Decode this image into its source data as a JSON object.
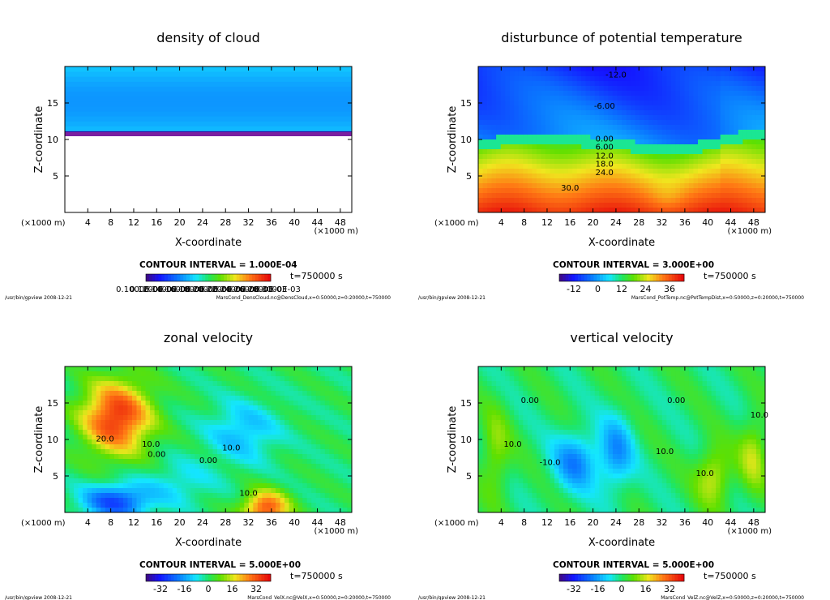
{
  "chart_data": [
    {
      "type": "heatmap",
      "panel": "top-left",
      "title": "density of cloud",
      "xlabel": "X-coordinate",
      "ylabel": "Z-coordinate",
      "x_unit": "(×1000 m)",
      "z_unit": "(×1000 m)",
      "xlim": [
        0,
        50
      ],
      "ylim": [
        0,
        20
      ],
      "x_ticks": [
        4,
        8,
        12,
        16,
        20,
        24,
        28,
        32,
        36,
        40,
        44,
        48
      ],
      "y_ticks": [
        5,
        10,
        15
      ],
      "contour_interval": "CONTOUR INTERVAL = 1.000E-04",
      "time": "t=750000 s",
      "colorbar_labels": [
        "0.1000E-03",
        "0.1200E-03",
        "0.1400E-03",
        "0.1600E-03",
        "0.1800E-03",
        "0.2000E-03",
        "0.2200E-03",
        "0.2400E-03",
        "0.2600E-03",
        "0.2800E-03",
        "0.3000E-03"
      ],
      "cloud_bottom_z": 10.5,
      "cloud_top_z": 20,
      "contour_labels": [],
      "footer_left": "/usr/bin/gpview   2008-12-21",
      "footer_right": "MarsCond_DensCloud.nc@DensCloud,x=0:50000,z=0:20000,t=750000"
    },
    {
      "type": "heatmap",
      "panel": "top-right",
      "title": "disturbunce of potential temperature",
      "xlabel": "X-coordinate",
      "ylabel": "Z-coordinate",
      "x_unit": "(×1000 m)",
      "z_unit": "(×1000 m)",
      "xlim": [
        0,
        50
      ],
      "ylim": [
        0,
        20
      ],
      "x_ticks": [
        4,
        8,
        12,
        16,
        20,
        24,
        28,
        32,
        36,
        40,
        44,
        48
      ],
      "y_ticks": [
        5,
        10,
        15
      ],
      "contour_interval": "CONTOUR INTERVAL = 3.000E+00",
      "time": "t=750000 s",
      "colorbar_ticks": [
        "-12",
        "0",
        "12",
        "24",
        "36"
      ],
      "contour_labels": [
        {
          "text": "-12.0",
          "x": 24,
          "z": 18.5
        },
        {
          "text": "-6.00",
          "x": 22,
          "z": 14.2
        },
        {
          "text": "0.00",
          "x": 22,
          "z": 9.7
        },
        {
          "text": "6.00",
          "x": 22,
          "z": 8.6
        },
        {
          "text": "12.0",
          "x": 22,
          "z": 7.4
        },
        {
          "text": "18.0",
          "x": 22,
          "z": 6.3
        },
        {
          "text": "24.0",
          "x": 22,
          "z": 5.1
        },
        {
          "text": "30.0",
          "x": 16,
          "z": 3.0
        }
      ],
      "footer_left": "/usr/bin/gpview   2008-12-21",
      "footer_right": "MarsCond_PotTemp.nc@PotTempDist,x=0:50000,z=0:20000,t=750000"
    },
    {
      "type": "heatmap",
      "panel": "bottom-left",
      "title": "zonal velocity",
      "xlabel": "X-coordinate",
      "ylabel": "Z-coordinate",
      "x_unit": "(×1000 m)",
      "z_unit": "(×1000 m)",
      "xlim": [
        0,
        50
      ],
      "ylim": [
        0,
        20
      ],
      "x_ticks": [
        4,
        8,
        12,
        16,
        20,
        24,
        28,
        32,
        36,
        40,
        44,
        48
      ],
      "y_ticks": [
        5,
        10,
        15
      ],
      "contour_interval": "CONTOUR INTERVAL = 5.000E+00",
      "time": "t=750000 s",
      "colorbar_ticks": [
        "-32",
        "-16",
        "0",
        "16",
        "32"
      ],
      "contour_labels": [
        {
          "text": "20.0",
          "x": 7,
          "z": 9.7
        },
        {
          "text": "10.0",
          "x": 15,
          "z": 9.0
        },
        {
          "text": "0.00",
          "x": 16,
          "z": 7.6
        },
        {
          "text": "0.00",
          "x": 25,
          "z": 6.8
        },
        {
          "text": "10.0",
          "x": 29,
          "z": 8.5
        },
        {
          "text": "10.0",
          "x": 32,
          "z": 2.3
        }
      ],
      "footer_left": "/usr/bin/gpview   2008-12-21",
      "footer_right": "MarsCond_VelX.nc@VelX,x=0:50000,z=0:20000,t=750000"
    },
    {
      "type": "heatmap",
      "panel": "bottom-right",
      "title": "vertical velocity",
      "xlabel": "X-coordinate",
      "ylabel": "Z-coordinate",
      "x_unit": "(×1000 m)",
      "z_unit": "(×1000 m)",
      "xlim": [
        0,
        50
      ],
      "ylim": [
        0,
        20
      ],
      "x_ticks": [
        4,
        8,
        12,
        16,
        20,
        24,
        28,
        32,
        36,
        40,
        44,
        48
      ],
      "y_ticks": [
        5,
        10,
        15
      ],
      "contour_interval": "CONTOUR INTERVAL = 5.000E+00",
      "time": "t=750000 s",
      "colorbar_ticks": [
        "-32",
        "-16",
        "0",
        "16",
        "32"
      ],
      "contour_labels": [
        {
          "text": "0.00",
          "x": 9,
          "z": 15
        },
        {
          "text": "10.0",
          "x": 6,
          "z": 9
        },
        {
          "text": "-10.0",
          "x": 12.5,
          "z": 6.5
        },
        {
          "text": "10.0",
          "x": 32.5,
          "z": 8
        },
        {
          "text": "0.00",
          "x": 34.5,
          "z": 15
        },
        {
          "text": "10.0",
          "x": 39.5,
          "z": 5
        },
        {
          "text": "10.0",
          "x": 49,
          "z": 13
        }
      ],
      "footer_left": "/usr/bin/gpview   2008-12-21",
      "footer_right": "MarsCond_VelZ.nc@VelZ,x=0:50000,z=0:20000,t=750000"
    }
  ]
}
